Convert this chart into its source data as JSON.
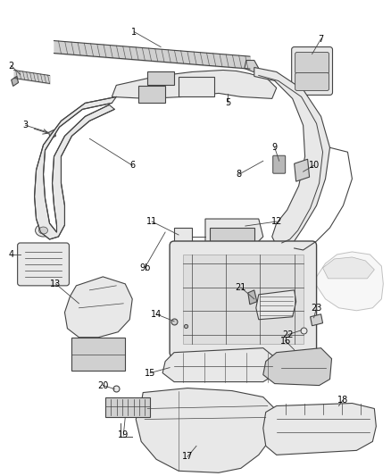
{
  "bg_color": "#ffffff",
  "fig_width": 4.38,
  "fig_height": 5.33,
  "dpi": 100,
  "line_color": "#444444",
  "text_color": "#000000",
  "fill_light": "#e8e8e8",
  "fill_mid": "#d0d0d0",
  "fill_dark": "#b8b8b8"
}
